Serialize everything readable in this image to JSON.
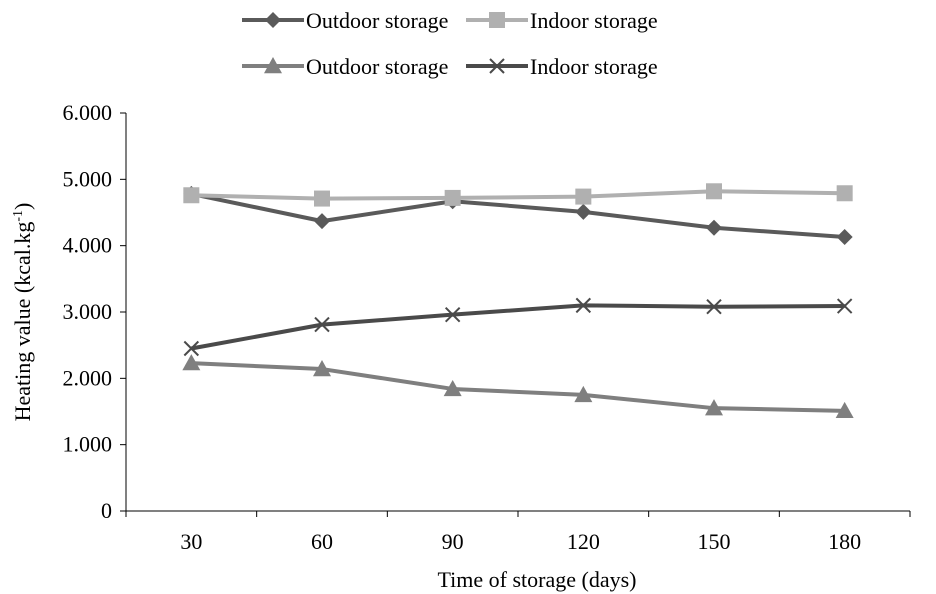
{
  "chart_data": {
    "type": "line",
    "title": "",
    "xlabel": "Time of storage (days)",
    "ylabel": {
      "base": "Heating value (kcal.kg",
      "sup": "-1",
      "close": ")"
    },
    "x": [
      30,
      60,
      90,
      120,
      150,
      180
    ],
    "ylim": [
      0,
      6000
    ],
    "yticks": [
      0,
      1000,
      2000,
      3000,
      4000,
      5000,
      6000
    ],
    "ytick_labels": [
      "0",
      "1.000",
      "2.000",
      "3.000",
      "4.000",
      "5.000",
      "6.000"
    ],
    "xtick_labels": [
      "30",
      "60",
      "90",
      "120",
      "150",
      "180"
    ],
    "grid": false,
    "legend_position": "top",
    "series": [
      {
        "name": "Outdoor storage",
        "marker": "diamond",
        "color": "#5a5a5a",
        "values": [
          4780,
          4370,
          4670,
          4510,
          4270,
          4130
        ]
      },
      {
        "name": "Indoor storage",
        "marker": "square",
        "color": "#b0b0b0",
        "values": [
          4760,
          4710,
          4720,
          4740,
          4820,
          4790
        ]
      },
      {
        "name": "Outdoor storage",
        "marker": "triangle",
        "color": "#7f7f7f",
        "values": [
          2230,
          2140,
          1840,
          1750,
          1550,
          1510
        ]
      },
      {
        "name": "Indoor storage",
        "marker": "x",
        "color": "#4a4a4a",
        "values": [
          2450,
          2810,
          2960,
          3100,
          3080,
          3090
        ]
      }
    ]
  }
}
